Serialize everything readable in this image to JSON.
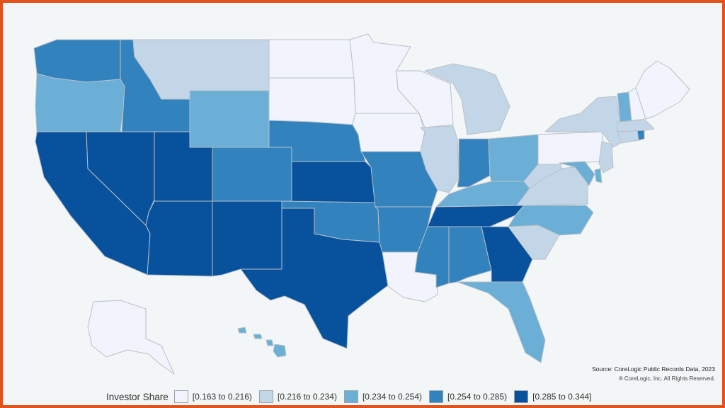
{
  "map": {
    "legend_title": "Investor Share",
    "legend": [
      {
        "label": "[0.163 to 0.216)",
        "color": "#f1f4fc"
      },
      {
        "label": "[0.216 to 0.234)",
        "color": "#c3d6e8"
      },
      {
        "label": "[0.234 to 0.254)",
        "color": "#6baed6"
      },
      {
        "label": "[0.254 to 0.285)",
        "color": "#3182bd"
      },
      {
        "label": "[0.285 to 0.344]",
        "color": "#08519c"
      }
    ],
    "source": "Source: CoreLogic Public Records Data, 2023",
    "copyright": "® CoreLogic, Inc. All Rights Reserved.",
    "states": [
      {
        "id": "WA",
        "cls": 3
      },
      {
        "id": "OR",
        "cls": 2
      },
      {
        "id": "CA",
        "cls": 4
      },
      {
        "id": "NV",
        "cls": 4
      },
      {
        "id": "ID",
        "cls": 3
      },
      {
        "id": "MT",
        "cls": 1
      },
      {
        "id": "WY",
        "cls": 2
      },
      {
        "id": "UT",
        "cls": 4
      },
      {
        "id": "AZ",
        "cls": 4
      },
      {
        "id": "CO",
        "cls": 3
      },
      {
        "id": "NM",
        "cls": 4
      },
      {
        "id": "ND",
        "cls": 0
      },
      {
        "id": "SD",
        "cls": 0
      },
      {
        "id": "NE",
        "cls": 3
      },
      {
        "id": "KS",
        "cls": 4
      },
      {
        "id": "OK",
        "cls": 3
      },
      {
        "id": "TX",
        "cls": 4
      },
      {
        "id": "MN",
        "cls": 0
      },
      {
        "id": "IA",
        "cls": 0
      },
      {
        "id": "MO",
        "cls": 3
      },
      {
        "id": "AR",
        "cls": 3
      },
      {
        "id": "LA",
        "cls": 0
      },
      {
        "id": "WI",
        "cls": 0
      },
      {
        "id": "IL",
        "cls": 1
      },
      {
        "id": "MI",
        "cls": 1
      },
      {
        "id": "IN",
        "cls": 3
      },
      {
        "id": "OH",
        "cls": 2
      },
      {
        "id": "KY",
        "cls": 2
      },
      {
        "id": "TN",
        "cls": 4
      },
      {
        "id": "MS",
        "cls": 3
      },
      {
        "id": "AL",
        "cls": 3
      },
      {
        "id": "GA",
        "cls": 4
      },
      {
        "id": "FL",
        "cls": 2
      },
      {
        "id": "SC",
        "cls": 1
      },
      {
        "id": "NC",
        "cls": 2
      },
      {
        "id": "VA",
        "cls": 1
      },
      {
        "id": "WV",
        "cls": 1
      },
      {
        "id": "PA",
        "cls": 0
      },
      {
        "id": "NY",
        "cls": 1
      },
      {
        "id": "MD",
        "cls": 2
      },
      {
        "id": "DE",
        "cls": 2
      },
      {
        "id": "NJ",
        "cls": 1
      },
      {
        "id": "CT",
        "cls": 1
      },
      {
        "id": "RI",
        "cls": 3
      },
      {
        "id": "MA",
        "cls": 1
      },
      {
        "id": "VT",
        "cls": 2
      },
      {
        "id": "NH",
        "cls": 0
      },
      {
        "id": "ME",
        "cls": 0
      },
      {
        "id": "AK",
        "cls": 0
      },
      {
        "id": "HI",
        "cls": 2
      }
    ]
  }
}
